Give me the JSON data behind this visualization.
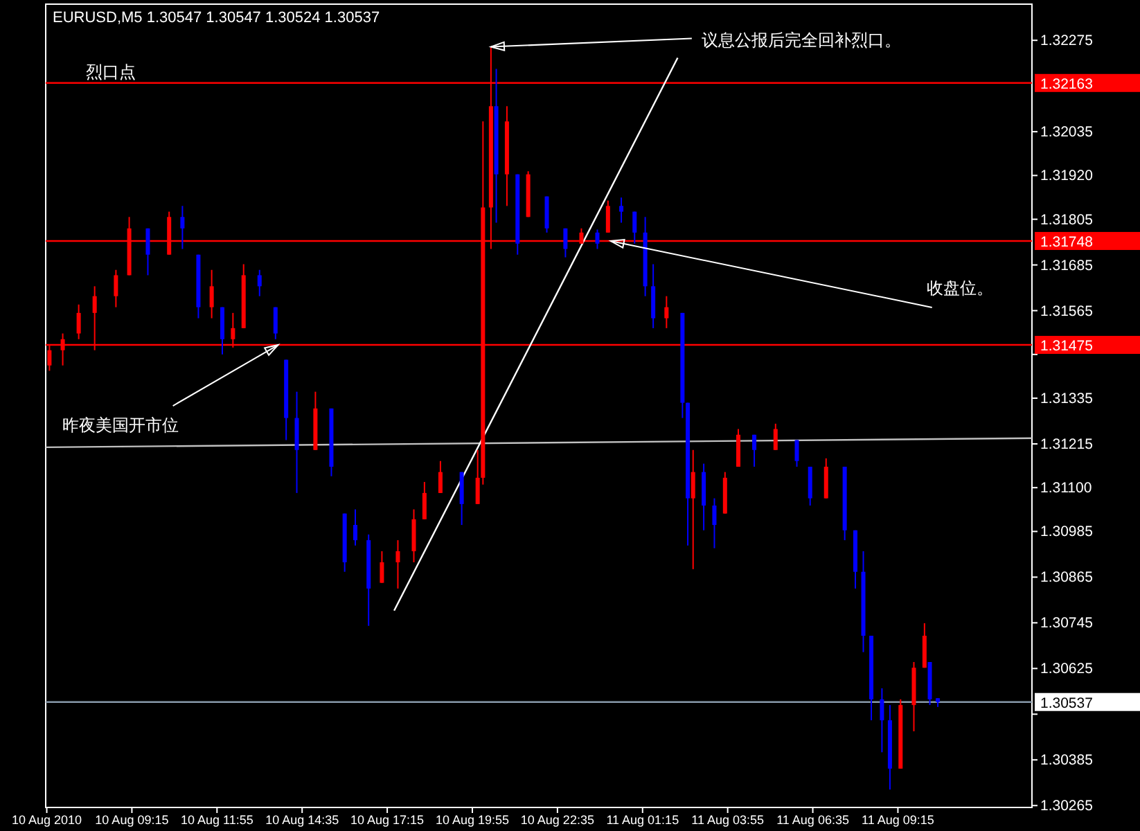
{
  "chart_data": {
    "type": "candlestick",
    "title": "EURUSD,M5  1.30547 1.30547 1.30524 1.30537",
    "x": [
      "2010-08-10T06:40",
      "2010-08-10T07:05",
      "2010-08-10T07:35",
      "2010-08-10T08:05",
      "2010-08-10T08:45",
      "2010-08-10T09:10",
      "2010-08-10T09:45",
      "2010-08-10T10:25",
      "2010-08-10T10:50",
      "2010-08-10T11:20",
      "2010-08-10T11:45",
      "2010-08-10T12:05",
      "2010-08-10T12:25",
      "2010-08-10T12:45",
      "2010-08-10T13:15",
      "2010-08-10T13:45",
      "2010-08-10T14:05",
      "2010-08-10T14:25",
      "2010-08-10T15:00",
      "2010-08-10T15:30",
      "2010-08-10T15:55",
      "2010-08-10T16:15",
      "2010-08-10T16:40",
      "2010-08-10T17:05",
      "2010-08-10T17:35",
      "2010-08-10T18:05",
      "2010-08-10T18:25",
      "2010-08-10T18:55",
      "2010-08-10T19:35",
      "2010-08-10T20:05",
      "2010-08-10T20:15",
      "2010-08-10T20:30",
      "2010-08-10T20:40",
      "2010-08-10T21:00",
      "2010-08-10T21:20",
      "2010-08-10T21:40",
      "2010-08-10T22:15",
      "2010-08-10T22:50",
      "2010-08-10T23:20",
      "2010-08-10T23:50",
      "2010-08-11T00:10",
      "2010-08-11T00:35",
      "2010-08-11T01:00",
      "2010-08-11T01:20",
      "2010-08-11T01:35",
      "2010-08-11T02:00",
      "2010-08-11T02:30",
      "2010-08-11T02:40",
      "2010-08-11T02:50",
      "2010-08-11T03:10",
      "2010-08-11T03:30",
      "2010-08-11T03:50",
      "2010-08-11T04:15",
      "2010-08-11T04:45",
      "2010-08-11T05:25",
      "2010-08-11T06:05",
      "2010-08-11T06:30",
      "2010-08-11T07:00",
      "2010-08-11T07:35",
      "2010-08-11T07:55",
      "2010-08-11T08:10",
      "2010-08-11T08:25",
      "2010-08-11T08:45",
      "2010-08-11T09:00",
      "2010-08-11T09:20",
      "2010-08-11T09:45",
      "2010-08-11T10:05",
      "2010-08-11T10:15",
      "2010-08-11T10:30"
    ],
    "ohlc": [
      [
        1.31421,
        1.31476,
        1.31407,
        1.31461
      ],
      [
        1.31461,
        1.31505,
        1.31421,
        1.3149
      ],
      [
        1.31505,
        1.31581,
        1.3149,
        1.31559
      ],
      [
        1.31559,
        1.31629,
        1.31461,
        1.31603
      ],
      [
        1.31603,
        1.31672,
        1.31574,
        1.31658
      ],
      [
        1.31658,
        1.31811,
        1.31658,
        1.31781
      ],
      [
        1.31781,
        1.31781,
        1.31658,
        1.31712
      ],
      [
        1.31712,
        1.31825,
        1.31712,
        1.31811
      ],
      [
        1.31811,
        1.3184,
        1.31727,
        1.31781
      ],
      [
        1.31712,
        1.31712,
        1.31545,
        1.31574
      ],
      [
        1.31574,
        1.31672,
        1.31545,
        1.31629
      ],
      [
        1.31574,
        1.31574,
        1.3145,
        1.3149
      ],
      [
        1.3149,
        1.31559,
        1.31468,
        1.31519
      ],
      [
        1.31519,
        1.31687,
        1.31519,
        1.31658
      ],
      [
        1.31658,
        1.31672,
        1.31603,
        1.31629
      ],
      [
        1.31574,
        1.31574,
        1.3149,
        1.31505
      ],
      [
        1.31436,
        1.31436,
        1.31225,
        1.31283
      ],
      [
        1.31283,
        1.31352,
        1.31086,
        1.31199
      ],
      [
        1.31199,
        1.31352,
        1.31199,
        1.31308
      ],
      [
        1.31308,
        1.31308,
        1.3113,
        1.31155
      ],
      [
        1.31032,
        1.31032,
        1.30879,
        1.30904
      ],
      [
        1.31002,
        1.31043,
        1.30948,
        1.30962
      ],
      [
        1.30962,
        1.30977,
        1.30737,
        1.30835
      ],
      [
        1.3085,
        1.30933,
        1.3085,
        1.30904
      ],
      [
        1.30904,
        1.30962,
        1.30835,
        1.30933
      ],
      [
        1.30933,
        1.31043,
        1.30904,
        1.31017
      ],
      [
        1.31017,
        1.31115,
        1.31017,
        1.31086
      ],
      [
        1.31086,
        1.3117,
        1.31086,
        1.31141
      ],
      [
        1.31141,
        1.31141,
        1.31002,
        1.31057
      ],
      [
        1.31057,
        1.31199,
        1.31057,
        1.31126
      ],
      [
        1.31126,
        1.32062,
        1.31108,
        1.31836
      ],
      [
        1.31836,
        1.32258,
        1.31727,
        1.32102
      ],
      [
        1.32102,
        1.322,
        1.31796,
        1.31923
      ],
      [
        1.31923,
        1.32102,
        1.3184,
        1.32062
      ],
      [
        1.31923,
        1.31923,
        1.31712,
        1.31741
      ],
      [
        1.31811,
        1.31931,
        1.31811,
        1.31923
      ],
      [
        1.31865,
        1.31865,
        1.3177,
        1.31781
      ],
      [
        1.31781,
        1.31781,
        1.31705,
        1.31727
      ],
      [
        1.31741,
        1.31781,
        1.31741,
        1.3177
      ],
      [
        1.3177,
        1.31778,
        1.31727,
        1.31741
      ],
      [
        1.3177,
        1.31854,
        1.3177,
        1.3184
      ],
      [
        1.3184,
        1.31862,
        1.31796,
        1.31825
      ],
      [
        1.31825,
        1.31825,
        1.31741,
        1.3177
      ],
      [
        1.3177,
        1.31811,
        1.31603,
        1.31629
      ],
      [
        1.31629,
        1.31687,
        1.31519,
        1.31545
      ],
      [
        1.31545,
        1.31603,
        1.31519,
        1.31574
      ],
      [
        1.31559,
        1.31559,
        1.31283,
        1.31323
      ],
      [
        1.31323,
        1.31323,
        1.30948,
        1.31072
      ],
      [
        1.31072,
        1.31199,
        1.30886,
        1.31141
      ],
      [
        1.31141,
        1.31163,
        1.30988,
        1.31053
      ],
      [
        1.31053,
        1.31072,
        1.30941,
        1.31002
      ],
      [
        1.31032,
        1.31141,
        1.31032,
        1.31126
      ],
      [
        1.31155,
        1.31254,
        1.31155,
        1.31239
      ],
      [
        1.31239,
        1.31239,
        1.31155,
        1.31199
      ],
      [
        1.31199,
        1.31268,
        1.31199,
        1.31254
      ],
      [
        1.31225,
        1.31225,
        1.31155,
        1.3117
      ],
      [
        1.31155,
        1.31155,
        1.31053,
        1.31072
      ],
      [
        1.31072,
        1.31177,
        1.31072,
        1.31155
      ],
      [
        1.31155,
        1.31155,
        1.30962,
        1.30988
      ],
      [
        1.30988,
        1.30988,
        1.30835,
        1.30879
      ],
      [
        1.30879,
        1.30933,
        1.30668,
        1.30711
      ],
      [
        1.30711,
        1.30711,
        1.30489,
        1.30544
      ],
      [
        1.30544,
        1.30573,
        1.30405,
        1.30489
      ],
      [
        1.30489,
        1.30529,
        1.30307,
        1.30362
      ],
      [
        1.30362,
        1.30544,
        1.30362,
        1.30529
      ],
      [
        1.30529,
        1.30642,
        1.3046,
        1.30627
      ],
      [
        1.30627,
        1.30744,
        1.30627,
        1.30711
      ],
      [
        1.30642,
        1.30642,
        1.30529,
        1.30544
      ],
      [
        1.30547,
        1.30547,
        1.30524,
        1.30537
      ]
    ],
    "colors": [
      "#ff0000",
      "#ff0000",
      "#ff0000",
      "#ff0000",
      "#ff0000",
      "#ff0000",
      "#0000ff",
      "#ff0000",
      "#0000ff",
      "#0000ff",
      "#ff0000",
      "#0000ff",
      "#ff0000",
      "#ff0000",
      "#0000ff",
      "#0000ff",
      "#0000ff",
      "#0000ff",
      "#ff0000",
      "#0000ff",
      "#0000ff",
      "#0000ff",
      "#0000ff",
      "#ff0000",
      "#ff0000",
      "#ff0000",
      "#ff0000",
      "#ff0000",
      "#0000ff",
      "#ff0000",
      "#ff0000",
      "#ff0000",
      "#0000ff",
      "#ff0000",
      "#0000ff",
      "#ff0000",
      "#0000ff",
      "#0000ff",
      "#ff0000",
      "#0000ff",
      "#ff0000",
      "#0000ff",
      "#0000ff",
      "#0000ff",
      "#0000ff",
      "#ff0000",
      "#0000ff",
      "#0000ff",
      "#ff0000",
      "#0000ff",
      "#0000ff",
      "#ff0000",
      "#ff0000",
      "#0000ff",
      "#ff0000",
      "#0000ff",
      "#0000ff",
      "#ff0000",
      "#0000ff",
      "#0000ff",
      "#0000ff",
      "#0000ff",
      "#0000ff",
      "#0000ff",
      "#ff0000",
      "#ff0000",
      "#ff0000",
      "#0000ff",
      "#0000ff"
    ],
    "series": [
      {
        "type": "line",
        "color": "#c0c0c0",
        "x": [
          "2010-08-10T06:33",
          "2010-08-11T13:27"
        ],
        "values": [
          1.31206,
          1.3123
        ]
      },
      {
        "type": "line",
        "color": "#ffffff",
        "x": [
          "2010-08-10T17:28",
          "2010-08-11T02:21"
        ],
        "values": [
          1.30777,
          1.32229
        ]
      }
    ],
    "xlim": [
      "2010-08-10T06:33",
      "2010-08-11T13:27"
    ],
    "xticks": [
      {
        "value": "2010-08-10T06:35",
        "label": "10 Aug 2010"
      },
      {
        "value": "2010-08-10T09:15",
        "label": "10 Aug 09:15"
      },
      {
        "value": "2010-08-10T11:55",
        "label": "10 Aug 11:55"
      },
      {
        "value": "2010-08-10T14:35",
        "label": "10 Aug 14:35"
      },
      {
        "value": "2010-08-10T17:15",
        "label": "10 Aug 17:15"
      },
      {
        "value": "2010-08-10T19:55",
        "label": "10 Aug 19:55"
      },
      {
        "value": "2010-08-10T22:35",
        "label": "10 Aug 22:35"
      },
      {
        "value": "2010-08-11T01:15",
        "label": "11 Aug 01:15"
      },
      {
        "value": "2010-08-11T03:55",
        "label": "11 Aug 03:55"
      },
      {
        "value": "2010-08-11T06:35",
        "label": "11 Aug 06:35"
      },
      {
        "value": "2010-08-11T09:15",
        "label": "11 Aug 09:15"
      }
    ],
    "ylim": [
      1.3026,
      1.3237
    ],
    "yticks": [
      {
        "value": 1.32275,
        "label": "1.32275"
      },
      {
        "value": 1.32035,
        "label": "1.32035"
      },
      {
        "value": 1.3192,
        "label": "1.31920"
      },
      {
        "value": 1.31805,
        "label": "1.31805"
      },
      {
        "value": 1.31685,
        "label": "1.31685"
      },
      {
        "value": 1.31565,
        "label": "1.31565"
      },
      {
        "value": 1.3145,
        "label": null
      },
      {
        "value": 1.31335,
        "label": "1.31335"
      },
      {
        "value": 1.31215,
        "label": "1.31215"
      },
      {
        "value": 1.311,
        "label": "1.31100"
      },
      {
        "value": 1.30985,
        "label": "1.30985"
      },
      {
        "value": 1.30865,
        "label": "1.30865"
      },
      {
        "value": 1.30745,
        "label": "1.30745"
      },
      {
        "value": 1.30625,
        "label": "1.30625"
      },
      {
        "value": 1.30505,
        "label": null
      },
      {
        "value": 1.30385,
        "label": "1.30385"
      },
      {
        "value": 1.30265,
        "label": "1.30265"
      }
    ],
    "ref_lines": [
      {
        "axis": "y",
        "value": 1.32163,
        "label": "1.32163",
        "color": "#ff0000"
      },
      {
        "axis": "y",
        "value": 1.31748,
        "label": "1.31748",
        "color": "#ff0000"
      },
      {
        "axis": "y",
        "value": 1.31475,
        "label": "1.31475",
        "color": "#ff0000"
      },
      {
        "axis": "y",
        "value": 1.30537,
        "label": "1.30537",
        "color": "#8899aa"
      }
    ],
    "annotations": [
      {
        "text": "烈口点",
        "x": "2010-08-10T08:35",
        "y": 1.32163
      },
      {
        "text": "议息公报后完全回补烈口。",
        "x": "2010-08-10T20:30",
        "y": 1.32258
      },
      {
        "text": "收盘位。",
        "x": "2010-08-11T00:15",
        "y": 1.31748
      },
      {
        "text": "昨夜美国开市位",
        "x": "2010-08-10T13:50",
        "y": 1.31475
      }
    ]
  }
}
